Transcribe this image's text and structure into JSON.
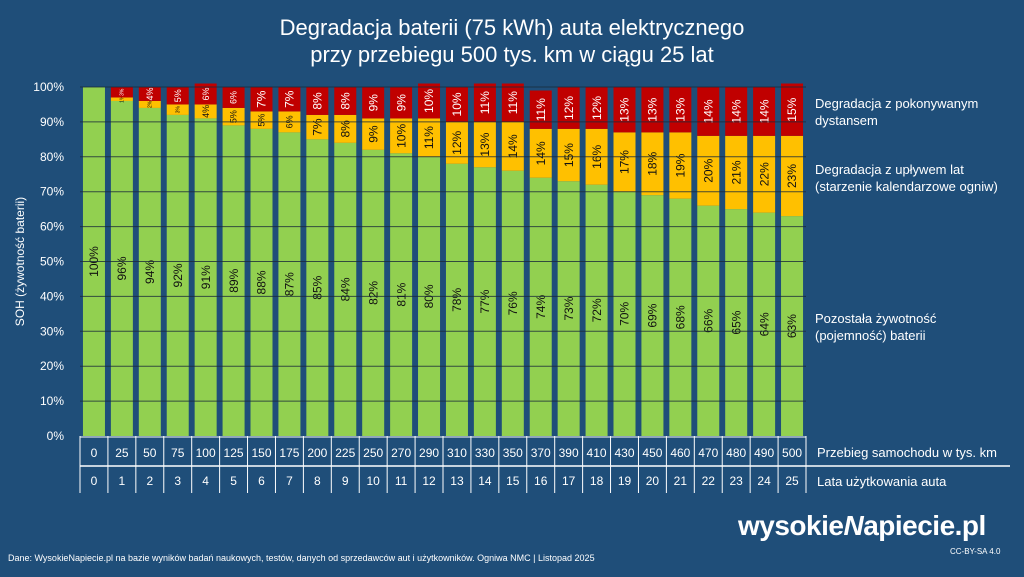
{
  "chart_data": {
    "type": "bar",
    "stacked": true,
    "title": "Degradacja baterii (75 kWh) auta elektrycznego\nprzy przebiegu 500 tys. km w ciągu 25 lat",
    "title_lines": [
      "Degradacja baterii (75 kWh) auta elektrycznego",
      "przy przebiegu 500 tys. km w ciągu 25 lat"
    ],
    "ylabel": "SOH (żywotność baterii)",
    "ylim": [
      0,
      100
    ],
    "yticks": [
      "0%",
      "10%",
      "20%",
      "30%",
      "40%",
      "50%",
      "60%",
      "70%",
      "80%",
      "90%",
      "100%"
    ],
    "grid": true,
    "categories_mileage": [
      "0",
      "25",
      "50",
      "75",
      "100",
      "125",
      "150",
      "175",
      "200",
      "225",
      "250",
      "270",
      "290",
      "310",
      "330",
      "350",
      "370",
      "390",
      "410",
      "430",
      "450",
      "460",
      "470",
      "480",
      "490",
      "500"
    ],
    "categories_years": [
      "0",
      "1",
      "2",
      "3",
      "4",
      "5",
      "6",
      "7",
      "8",
      "9",
      "10",
      "11",
      "12",
      "13",
      "14",
      "15",
      "16",
      "17",
      "18",
      "19",
      "20",
      "21",
      "22",
      "23",
      "24",
      "25"
    ],
    "mileage_row_label": "Przebieg samochodu w tys. km",
    "years_row_label": "Lata użytkowania auta",
    "series": [
      {
        "name": "Pozostała żywotność (pojemność) baterii",
        "label_lines": [
          "Pozostała żywotność",
          "(pojemność) baterii"
        ],
        "color": "#92d050",
        "values": [
          100,
          96,
          94,
          92,
          91,
          89,
          88,
          87,
          85,
          84,
          82,
          81,
          80,
          78,
          77,
          76,
          74,
          73,
          72,
          70,
          69,
          68,
          66,
          65,
          64,
          63
        ]
      },
      {
        "name": "Degradacja z upływem lat (starzenie kalendarzowe ogniw)",
        "label_lines": [
          "Degradacja z upływem lat",
          "(starzenie kalendarzowe ogniw)"
        ],
        "color": "#ffc000",
        "values": [
          0,
          1,
          2,
          3,
          4,
          5,
          5,
          6,
          7,
          8,
          9,
          10,
          11,
          12,
          13,
          14,
          14,
          15,
          16,
          17,
          18,
          19,
          20,
          21,
          22,
          23
        ]
      },
      {
        "name": "Degradacja z pokonywanym dystansem",
        "label_lines": [
          "Degradacja z pokonywanym",
          "dystansem"
        ],
        "color": "#c00000",
        "values": [
          0,
          3,
          4,
          5,
          6,
          6,
          7,
          7,
          8,
          8,
          9,
          9,
          10,
          10,
          11,
          11,
          11,
          12,
          12,
          13,
          13,
          13,
          14,
          14,
          14,
          15
        ]
      }
    ]
  },
  "footer": {
    "source": "Dane: WysokieNapiecie.pl na bazie wyników badań naukowych, testów, danych od sprzedawców aut i użytkowników. Ogniwa NMC  |  Listopad 2025",
    "license": "CC-BY-SA 4.0",
    "logo": "wysokieNapiecie.pl"
  },
  "colors": {
    "background": "#1f4e79",
    "grid": "#1a2a3a"
  }
}
